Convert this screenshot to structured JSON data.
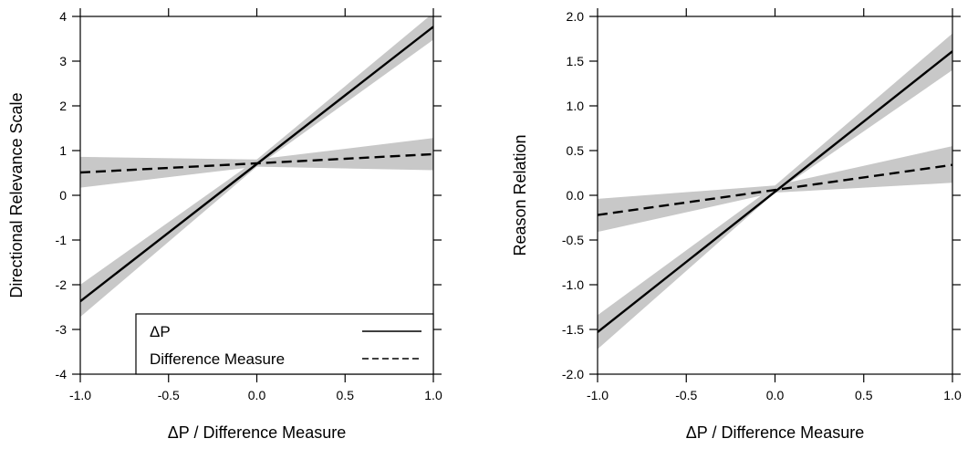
{
  "colors": {
    "band": "#c8c8c8",
    "line": "#000000",
    "frame": "#000000"
  },
  "chart_data": [
    {
      "type": "line",
      "title": "",
      "xlabel": "ΔP / Difference Measure",
      "ylabel": "Directional Relevance Scale",
      "xlim": [
        -1.0,
        1.0
      ],
      "ylim": [
        -4,
        4
      ],
      "x_ticks": [
        -1.0,
        -0.5,
        0.0,
        0.5,
        1.0
      ],
      "x_tick_labels": [
        "-1.0",
        "-0.5",
        "0.0",
        "0.5",
        "1.0"
      ],
      "y_ticks": [
        -4,
        -3,
        -2,
        -1,
        0,
        1,
        2,
        3,
        4
      ],
      "y_tick_labels": [
        "-4",
        "-3",
        "-2",
        "-1",
        "0",
        "1",
        "2",
        "3",
        "4"
      ],
      "grid": false,
      "legend_position": "bottom-right",
      "series": [
        {
          "name": "ΔP",
          "style": "solid",
          "x": [
            -1.0,
            1.0
          ],
          "y": [
            -2.37,
            3.77
          ],
          "ci_lower": [
            -2.72,
            3.48
          ],
          "ci_upper": [
            -2.0,
            4.08
          ]
        },
        {
          "name": "Difference Measure",
          "style": "dashed",
          "x": [
            -1.0,
            1.0
          ],
          "y": [
            0.51,
            0.92
          ],
          "ci_lower": [
            0.17,
            0.56
          ],
          "ci_upper": [
            0.86,
            1.28
          ]
        }
      ],
      "pivot": {
        "x": 0.0,
        "y": 0.72,
        "ci_lower": 0.64,
        "ci_upper": 0.8
      }
    },
    {
      "type": "line",
      "title": "",
      "xlabel": "ΔP / Difference Measure",
      "ylabel": "Reason Relation",
      "xlim": [
        -1.0,
        1.0
      ],
      "ylim": [
        -2.0,
        2.0
      ],
      "x_ticks": [
        -1.0,
        -0.5,
        0.0,
        0.5,
        1.0
      ],
      "x_tick_labels": [
        "-1.0",
        "-0.5",
        "0.0",
        "0.5",
        "1.0"
      ],
      "y_ticks": [
        -2.0,
        -1.5,
        -1.0,
        -0.5,
        0.0,
        0.5,
        1.0,
        1.5,
        2.0
      ],
      "y_tick_labels": [
        "-2.0",
        "-1.5",
        "-1.0",
        "-0.5",
        "0.0",
        "0.5",
        "1.0",
        "1.5",
        "2.0"
      ],
      "grid": false,
      "series": [
        {
          "name": "ΔP",
          "style": "solid",
          "x": [
            -1.0,
            1.0
          ],
          "y": [
            -1.53,
            1.61
          ],
          "ci_lower": [
            -1.72,
            1.4
          ],
          "ci_upper": [
            -1.34,
            1.81
          ]
        },
        {
          "name": "Difference Measure",
          "style": "dashed",
          "x": [
            -1.0,
            1.0
          ],
          "y": [
            -0.22,
            0.34
          ],
          "ci_lower": [
            -0.41,
            0.14
          ],
          "ci_upper": [
            -0.04,
            0.55
          ]
        }
      ],
      "pivot": {
        "x": 0.0,
        "y": 0.07,
        "ci_lower": 0.03,
        "ci_upper": 0.11
      }
    }
  ]
}
